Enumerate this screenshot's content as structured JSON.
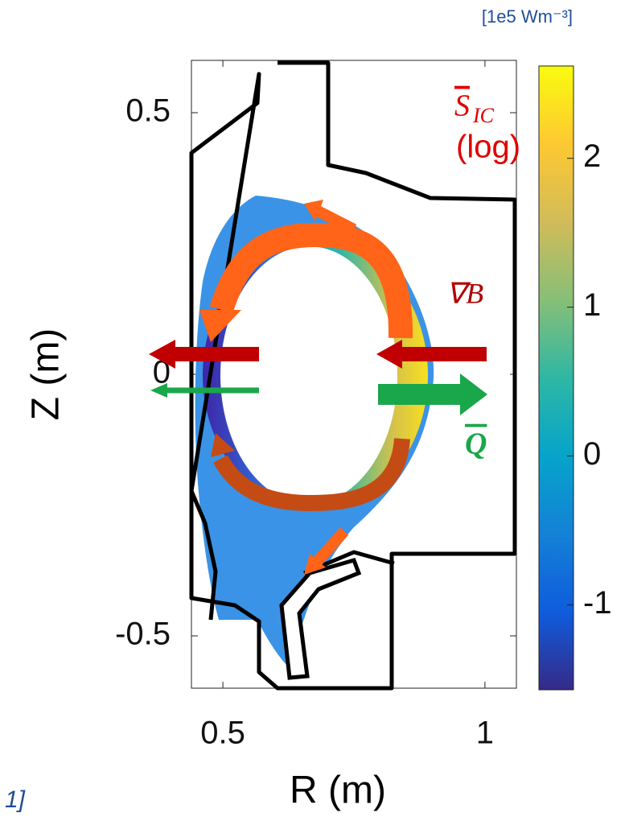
{
  "chart_data": {
    "type": "poloidal-map",
    "xlabel": "R (m)",
    "ylabel": "Z (m)",
    "xlim": [
      0.44,
      1.06
    ],
    "xticks": [
      0.5,
      1
    ],
    "ylim": [
      -0.6,
      0.6
    ],
    "yticks": [
      0.5,
      {
        "value": 0,
        "label": "0"
      },
      -0.5
    ],
    "colorbar": {
      "label": "[1e5 Wm⁻³]",
      "lim": [
        -1.57,
        2.62
      ],
      "ticks": [
        2,
        1,
        0,
        -1
      ],
      "colormap": [
        "#352a87",
        "#0f5cdd",
        "#1481d6",
        "#06a4ca",
        "#2eb7a4",
        "#87bf77",
        "#d1bb59",
        "#fec832",
        "#f9fb0e"
      ]
    },
    "annotations": {
      "source": {
        "text": "S",
        "subscript": "IC"
      },
      "scale": "(log)",
      "drift": "∇B",
      "flux": "Q",
      "corner": "1]"
    }
  }
}
